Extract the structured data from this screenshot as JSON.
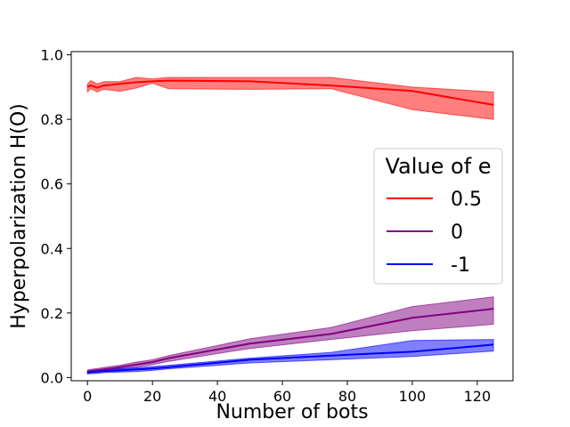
{
  "chart_data": {
    "type": "line",
    "title": "",
    "xlabel": "Number of bots",
    "ylabel": "Hyperpolarization H(O)",
    "xlim": [
      -5,
      131
    ],
    "ylim": [
      -0.01,
      1.01
    ],
    "xticks": [
      0,
      20,
      40,
      60,
      80,
      100,
      120
    ],
    "yticks": [
      0.0,
      0.2,
      0.4,
      0.6,
      0.8,
      1.0
    ],
    "xtick_labels": [
      "0",
      "20",
      "40",
      "60",
      "80",
      "100",
      "120"
    ],
    "ytick_labels": [
      "0.0",
      "0.2",
      "0.4",
      "0.6",
      "0.8",
      "1.0"
    ],
    "grid": false,
    "legend": {
      "title": "Value of e",
      "placement": "center-right"
    },
    "series": [
      {
        "name": "0.5",
        "color": "#ff0000",
        "x": [
          0,
          1,
          3,
          5,
          10,
          15,
          20,
          25,
          50,
          75,
          100,
          125
        ],
        "y": [
          0.9,
          0.905,
          0.898,
          0.905,
          0.91,
          0.915,
          0.918,
          0.92,
          0.918,
          0.905,
          0.888,
          0.845
        ],
        "lower": [
          0.885,
          0.895,
          0.885,
          0.893,
          0.887,
          0.897,
          0.912,
          0.895,
          0.893,
          0.895,
          0.83,
          0.8
        ],
        "upper": [
          0.91,
          0.92,
          0.91,
          0.917,
          0.917,
          0.93,
          0.925,
          0.93,
          0.93,
          0.93,
          0.9,
          0.885
        ]
      },
      {
        "name": "0",
        "color": "#800080",
        "x": [
          0,
          1,
          3,
          5,
          10,
          15,
          20,
          25,
          50,
          75,
          100,
          125
        ],
        "y": [
          0.018,
          0.02,
          0.022,
          0.025,
          0.032,
          0.04,
          0.048,
          0.06,
          0.105,
          0.135,
          0.185,
          0.213
        ],
        "lower": [
          0.013,
          0.015,
          0.017,
          0.02,
          0.026,
          0.032,
          0.04,
          0.05,
          0.09,
          0.118,
          0.145,
          0.165
        ],
        "upper": [
          0.023,
          0.025,
          0.028,
          0.031,
          0.038,
          0.048,
          0.055,
          0.068,
          0.12,
          0.155,
          0.22,
          0.25
        ]
      },
      {
        "name": "-1",
        "color": "#0000ff",
        "x": [
          0,
          1,
          3,
          5,
          10,
          15,
          20,
          25,
          50,
          75,
          100,
          125
        ],
        "y": [
          0.015,
          0.017,
          0.018,
          0.02,
          0.022,
          0.025,
          0.028,
          0.032,
          0.055,
          0.068,
          0.08,
          0.102
        ],
        "lower": [
          0.011,
          0.012,
          0.013,
          0.015,
          0.017,
          0.018,
          0.022,
          0.027,
          0.045,
          0.055,
          0.065,
          0.082
        ],
        "upper": [
          0.02,
          0.022,
          0.024,
          0.026,
          0.028,
          0.03,
          0.034,
          0.038,
          0.06,
          0.078,
          0.115,
          0.118
        ]
      }
    ]
  }
}
